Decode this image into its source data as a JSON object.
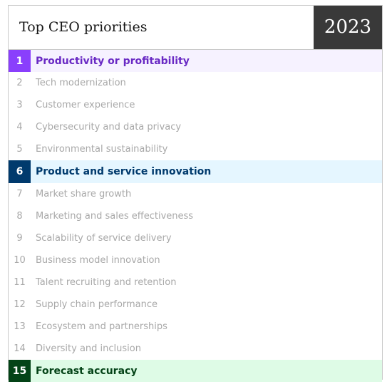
{
  "header": {
    "title": "Top CEO priorities",
    "year": "2023"
  },
  "items": [
    {
      "rank": "1",
      "label": "Productivity or profitability",
      "highlight": true,
      "accent": "#8a3ffc"
    },
    {
      "rank": "2",
      "label": "Tech modernization"
    },
    {
      "rank": "3",
      "label": "Customer experience"
    },
    {
      "rank": "4",
      "label": "Cybersecurity and data privacy"
    },
    {
      "rank": "5",
      "label": "Environmental sustainability"
    },
    {
      "rank": "6",
      "label": "Product and service innovation",
      "highlight": true,
      "accent": "#003a6d"
    },
    {
      "rank": "7",
      "label": "Market share growth"
    },
    {
      "rank": "8",
      "label": "Marketing and sales effectiveness"
    },
    {
      "rank": "9",
      "label": "Scalability of service delivery"
    },
    {
      "rank": "10",
      "label": "Business model innovation"
    },
    {
      "rank": "11",
      "label": "Talent recruiting and retention"
    },
    {
      "rank": "12",
      "label": "Supply chain performance"
    },
    {
      "rank": "13",
      "label": "Ecosystem and partnerships"
    },
    {
      "rank": "14",
      "label": "Diversity and inclusion"
    },
    {
      "rank": "15",
      "label": "Forecast accuracy",
      "highlight": true,
      "accent": "#044317"
    }
  ]
}
